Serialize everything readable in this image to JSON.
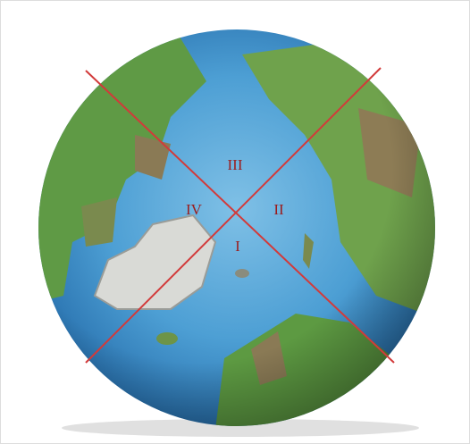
{
  "quadrants": {
    "q1": "I",
    "q2": "II",
    "q3": "III",
    "q4": "IV"
  }
}
